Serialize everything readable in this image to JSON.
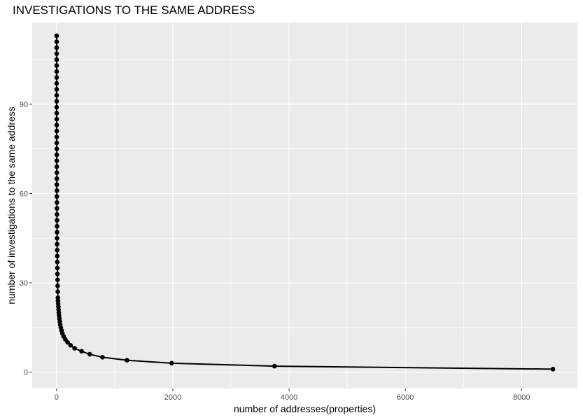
{
  "chart_data": {
    "type": "line",
    "title": "INVESTIGATIONS TO THE SAME ADDRESS",
    "xlabel": "number of addresses(properties)",
    "ylabel": "number of investigations to the same address",
    "xlim": [
      -420,
      8960
    ],
    "ylim": [
      -5.5,
      117.5
    ],
    "x_ticks": [
      0,
      2000,
      4000,
      6000,
      8000
    ],
    "y_ticks": [
      0,
      30,
      60,
      90
    ],
    "grid": true,
    "legend": "none",
    "colors": {
      "panel": "#ebebeb",
      "grid": "#ffffff",
      "line": "#000000",
      "point": "#000000"
    },
    "series": [
      {
        "x": [
          8540,
          3750,
          1980,
          1210,
          790,
          570,
          430,
          310,
          240,
          190,
          150,
          120,
          100,
          85,
          72,
          62,
          55,
          48,
          42,
          38,
          34,
          30,
          27,
          24,
          22,
          20,
          18,
          16,
          14,
          13,
          12,
          11,
          10,
          9,
          8,
          8,
          7,
          7,
          6,
          6,
          5,
          5,
          5,
          4,
          4,
          4,
          3,
          3,
          3,
          3,
          2,
          2,
          2,
          2,
          2,
          1,
          1,
          1,
          1,
          1,
          1,
          1,
          1,
          1,
          1,
          1,
          1,
          1,
          1
        ],
        "y": [
          1,
          2,
          3,
          4,
          5,
          6,
          7,
          8,
          9,
          10,
          11,
          12,
          13,
          14,
          15,
          16,
          17,
          18,
          19,
          20,
          21,
          22,
          23,
          24,
          25,
          27,
          29,
          31,
          33,
          35,
          37,
          39,
          41,
          43,
          45,
          47,
          49,
          51,
          53,
          55,
          57,
          59,
          61,
          63,
          65,
          67,
          69,
          71,
          73,
          75,
          77,
          79,
          81,
          83,
          85,
          87,
          89,
          91,
          93,
          95,
          97,
          99,
          101,
          103,
          105,
          107,
          109,
          111,
          113
        ]
      }
    ]
  }
}
